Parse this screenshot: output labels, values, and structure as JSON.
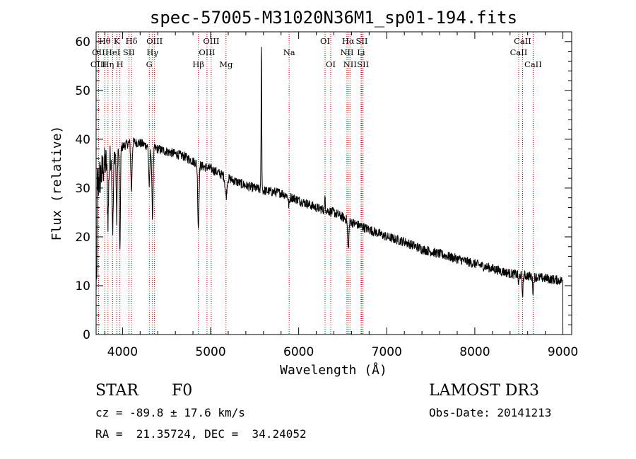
{
  "chart_data": {
    "type": "line",
    "title": "spec-57005-M31020N36M1_sp01-194.fits",
    "xlabel": "Wavelength (Å)",
    "ylabel": "Flux (relative)",
    "xlim": [
      3700,
      9100
    ],
    "ylim": [
      0,
      62
    ],
    "x_ticks": [
      4000,
      5000,
      6000,
      7000,
      8000,
      9000
    ],
    "y_ticks": [
      0,
      10,
      20,
      30,
      40,
      50,
      60
    ],
    "grid": false,
    "series": [
      {
        "name": "spectrum",
        "color": "#000000",
        "continuum_knots": [
          [
            3700,
            30
          ],
          [
            3800,
            35
          ],
          [
            3900,
            37
          ],
          [
            4000,
            38.5
          ],
          [
            4100,
            39.5
          ],
          [
            4200,
            39.2
          ],
          [
            4300,
            38.5
          ],
          [
            4400,
            38
          ],
          [
            4500,
            37.5
          ],
          [
            4600,
            37
          ],
          [
            4700,
            36.5
          ],
          [
            4800,
            35.5
          ],
          [
            4900,
            34.5
          ],
          [
            5000,
            34
          ],
          [
            5200,
            32
          ],
          [
            5400,
            30.5
          ],
          [
            5600,
            29.5
          ],
          [
            5800,
            29
          ],
          [
            6000,
            27.5
          ],
          [
            6200,
            26
          ],
          [
            6400,
            25
          ],
          [
            6600,
            23
          ],
          [
            6800,
            21.5
          ],
          [
            7000,
            20
          ],
          [
            7200,
            19
          ],
          [
            7400,
            17.5
          ],
          [
            7600,
            16.5
          ],
          [
            7800,
            15.5
          ],
          [
            8000,
            14.5
          ],
          [
            8200,
            13.5
          ],
          [
            8400,
            12.5
          ],
          [
            8600,
            12
          ],
          [
            8800,
            11.5
          ],
          [
            9000,
            11
          ]
        ],
        "absorption_features": [
          [
            3835,
            12,
            10
          ],
          [
            3889,
            15,
            10
          ],
          [
            3934,
            14,
            8
          ],
          [
            3970,
            22,
            8
          ],
          [
            4101,
            10,
            10
          ],
          [
            4304,
            8,
            10
          ],
          [
            4340,
            14,
            10
          ],
          [
            4861,
            13,
            10
          ],
          [
            5175,
            4,
            14
          ],
          [
            5890,
            2,
            10
          ],
          [
            6563,
            6,
            10
          ],
          [
            8498,
            2,
            8
          ],
          [
            8542,
            4,
            8
          ],
          [
            8662,
            3,
            8
          ]
        ],
        "emission_features": [
          [
            5577,
            30,
            5
          ],
          [
            6300,
            3,
            5
          ]
        ],
        "noise_amplitude": 1.0
      }
    ],
    "line_markers": [
      {
        "wavelength": 3727,
        "row": 1,
        "label": "OII"
      },
      {
        "wavelength": 3727,
        "row": 2,
        "label": "OIII"
      },
      {
        "wavelength": 3798,
        "row": 0,
        "label": "Hθ"
      },
      {
        "wavelength": 3835,
        "row": 2,
        "label": "Hη"
      },
      {
        "wavelength": 3889,
        "row": 1,
        "label": "HeI"
      },
      {
        "wavelength": 3934,
        "row": 0,
        "label": "K"
      },
      {
        "wavelength": 3970,
        "row": 2,
        "label": "H"
      },
      {
        "wavelength": 4072,
        "row": 1,
        "label": "SII"
      },
      {
        "wavelength": 4102,
        "row": 0,
        "label": "Hδ"
      },
      {
        "wavelength": 4304,
        "row": 2,
        "label": "G"
      },
      {
        "wavelength": 4340,
        "row": 1,
        "label": "Hγ"
      },
      {
        "wavelength": 4363,
        "row": 0,
        "label": "OIII"
      },
      {
        "wavelength": 4861,
        "row": 2,
        "label": "Hβ"
      },
      {
        "wavelength": 4959,
        "row": 1,
        "label": "OIII"
      },
      {
        "wavelength": 5007,
        "row": 0,
        "label": "OIII"
      },
      {
        "wavelength": 5175,
        "row": 2,
        "label": "Mg"
      },
      {
        "wavelength": 5892,
        "row": 1,
        "label": "Na"
      },
      {
        "wavelength": 6300,
        "row": 0,
        "label": "OI"
      },
      {
        "wavelength": 6364,
        "row": 2,
        "label": "OI"
      },
      {
        "wavelength": 6548,
        "row": 1,
        "label": "NII"
      },
      {
        "wavelength": 6563,
        "row": 0,
        "label": "Hα"
      },
      {
        "wavelength": 6583,
        "row": 2,
        "label": "NII"
      },
      {
        "wavelength": 6708,
        "row": 1,
        "label": "Li"
      },
      {
        "wavelength": 6717,
        "row": 0,
        "label": "SII"
      },
      {
        "wavelength": 6731,
        "row": 2,
        "label": "SII"
      },
      {
        "wavelength": 8498,
        "row": 1,
        "label": "CaII"
      },
      {
        "wavelength": 8542,
        "row": 0,
        "label": "CaII"
      },
      {
        "wavelength": 8662,
        "row": 2,
        "label": "CaII"
      }
    ],
    "marker_color": "#cc0000"
  },
  "info": {
    "class_label": "STAR",
    "subclass": "F0",
    "survey": "LAMOST DR3",
    "cz": "cz = -89.8 ± 17.6 km/s",
    "obs_date": "Obs-Date: 20141213",
    "radec": "RA =  21.35724, DEC =  34.24052"
  }
}
